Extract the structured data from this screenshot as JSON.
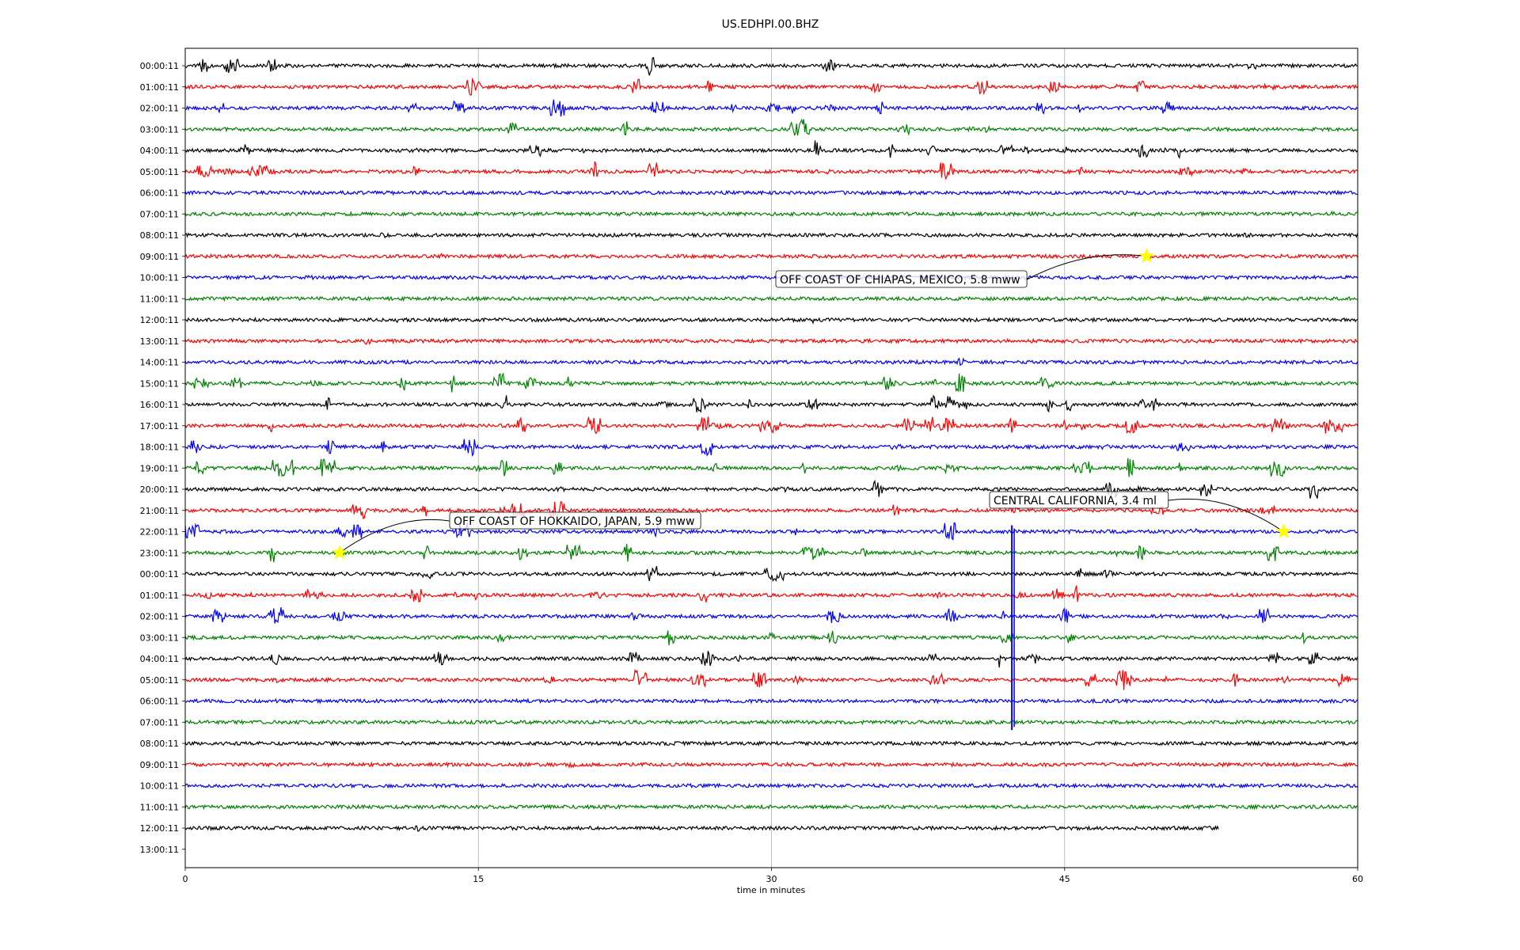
{
  "chart_data": {
    "type": "line",
    "title": "US.EDHPI.00.BHZ",
    "xlabel": "time in minutes",
    "ylabel": "",
    "xlim": [
      0,
      60
    ],
    "xticks": [
      0,
      15,
      30,
      45,
      60
    ],
    "grid": "vertical lines at 15, 30, 45",
    "row_labels": [
      "00:00:11",
      "01:00:11",
      "02:00:11",
      "03:00:11",
      "04:00:11",
      "05:00:11",
      "06:00:11",
      "07:00:11",
      "08:00:11",
      "09:00:11",
      "10:00:11",
      "11:00:11",
      "12:00:11",
      "13:00:11",
      "14:00:11",
      "15:00:11",
      "16:00:11",
      "17:00:11",
      "18:00:11",
      "19:00:11",
      "20:00:11",
      "21:00:11",
      "22:00:11",
      "23:00:11",
      "00:00:11",
      "01:00:11",
      "02:00:11",
      "03:00:11",
      "04:00:11",
      "05:00:11",
      "06:00:11",
      "07:00:11",
      "08:00:11",
      "09:00:11",
      "10:00:11",
      "11:00:11",
      "12:00:11",
      "13:00:11"
    ],
    "trace_colors": [
      "#000000",
      "#ff0000",
      "#0000ff",
      "#008000"
    ],
    "last_trace_end_minute": 52.9,
    "events": [
      {
        "label": "OFF COAST OF CHIAPAS, MEXICO, 5.8 mww",
        "row": 9,
        "minute": 49.2
      },
      {
        "label": "CENTRAL CALIFORNIA, 3.4 ml",
        "row": 22,
        "minute": 56.2
      },
      {
        "label": "OFF COAST OF HOKKAIDO, JAPAN, 5.9 mww",
        "row": 23,
        "minute": 7.9
      }
    ],
    "star_color": "#ffff00"
  }
}
